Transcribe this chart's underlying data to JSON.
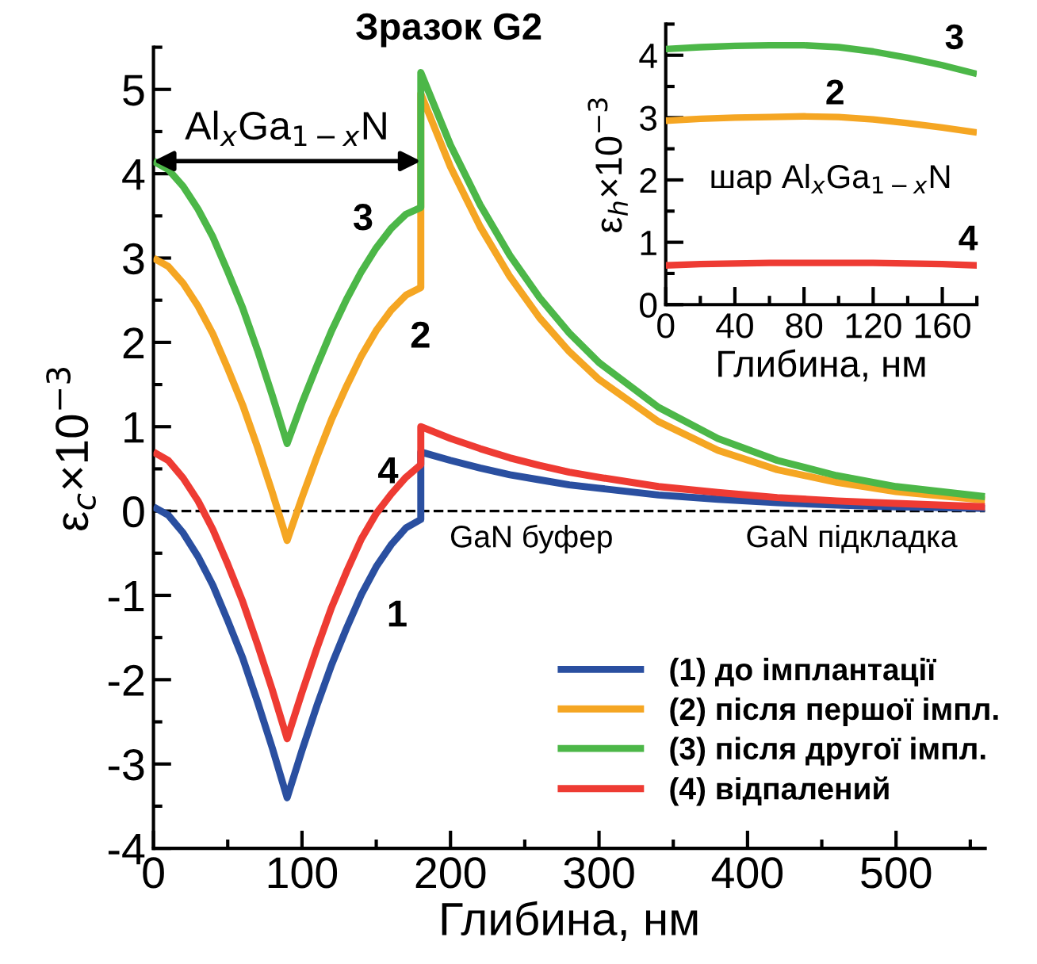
{
  "chart_data": [
    {
      "type": "line",
      "title": "Зразок G2",
      "xlabel": "Глибина, нм",
      "ylabel": "ε$_{c}$×10$^{−3}$",
      "x": [
        0,
        10,
        20,
        30,
        40,
        50,
        60,
        70,
        80,
        90,
        100,
        110,
        120,
        130,
        140,
        150,
        160,
        170,
        180,
        180,
        200,
        220,
        240,
        260,
        280,
        300,
        340,
        380,
        420,
        460,
        500,
        560
      ],
      "series": [
        {
          "name": "(1) до імплантації",
          "color": "#2a4fa0",
          "values": [
            0.05,
            -0.05,
            -0.26,
            -0.54,
            -0.88,
            -1.3,
            -1.74,
            -2.26,
            -2.81,
            -3.4,
            -2.84,
            -2.31,
            -1.82,
            -1.39,
            -0.99,
            -0.66,
            -0.4,
            -0.2,
            -0.1,
            0.7,
            0.6,
            0.51,
            0.43,
            0.37,
            0.31,
            0.27,
            0.19,
            0.14,
            0.1,
            0.07,
            0.05,
            0.03
          ]
        },
        {
          "name": "(2) після першої імпл.",
          "color": "#f5a623",
          "values": [
            3.0,
            2.9,
            2.7,
            2.43,
            2.1,
            1.69,
            1.26,
            0.76,
            0.22,
            -0.35,
            0.16,
            0.64,
            1.09,
            1.48,
            1.84,
            2.14,
            2.38,
            2.56,
            2.65,
            4.95,
            4.08,
            3.37,
            2.78,
            2.29,
            1.89,
            1.56,
            1.06,
            0.72,
            0.49,
            0.34,
            0.23,
            0.13
          ]
        },
        {
          "name": "(3) після другої імпл.",
          "color": "#4cb748",
          "values": [
            4.15,
            4.05,
            3.85,
            3.58,
            3.25,
            2.84,
            2.41,
            1.91,
            1.37,
            0.8,
            1.28,
            1.72,
            2.14,
            2.51,
            2.84,
            3.12,
            3.35,
            3.52,
            3.6,
            5.2,
            4.34,
            3.63,
            3.03,
            2.53,
            2.11,
            1.76,
            1.23,
            0.86,
            0.6,
            0.42,
            0.29,
            0.17
          ]
        },
        {
          "name": "(4) відпалений",
          "color": "#ee3b33",
          "values": [
            0.7,
            0.6,
            0.39,
            0.12,
            -0.22,
            -0.63,
            -1.07,
            -1.58,
            -2.12,
            -2.7,
            -2.15,
            -1.63,
            -1.14,
            -0.72,
            -0.33,
            -0.03,
            0.2,
            0.4,
            0.55,
            1.0,
            0.86,
            0.74,
            0.63,
            0.54,
            0.46,
            0.4,
            0.29,
            0.22,
            0.16,
            0.12,
            0.09,
            0.05
          ]
        }
      ],
      "xlim": [
        0,
        560
      ],
      "xticks": [
        0,
        {
          "value": 50,
          "label": null
        },
        100,
        {
          "value": 150,
          "label": null
        },
        200,
        {
          "value": 250,
          "label": null
        },
        300,
        {
          "value": 350,
          "label": null
        },
        400,
        {
          "value": 450,
          "label": null
        },
        500,
        {
          "value": 550,
          "label": null
        }
      ],
      "ylim": [
        -4,
        5.5
      ],
      "yticks": [
        {
          "value": -4,
          "label": "-4"
        },
        {
          "value": -3.5,
          "label": null
        },
        {
          "value": -3,
          "label": "-3"
        },
        {
          "value": -2.5,
          "label": null
        },
        {
          "value": -2,
          "label": "-2"
        },
        {
          "value": -1.5,
          "label": null
        },
        {
          "value": -1,
          "label": "-1"
        },
        {
          "value": -0.5,
          "label": null
        },
        0,
        {
          "value": 0.5,
          "label": null
        },
        1,
        {
          "value": 1.5,
          "label": null
        },
        2,
        {
          "value": 2.5,
          "label": null
        },
        3,
        {
          "value": 3.5,
          "label": null
        },
        4,
        {
          "value": 4.5,
          "label": null
        },
        5,
        {
          "value": 5.5,
          "label": null
        }
      ],
      "ref_lines": [
        {
          "axis": "y",
          "value": 0,
          "color": "#000000",
          "line_style": "dashed"
        }
      ],
      "annotations": [
        {
          "text": "Al$_{x}$Ga$_{1−x}$N",
          "x": 180,
          "y": 4.15
        },
        "3",
        "2",
        "4",
        "1",
        "GaN буфер",
        "GaN підкладка"
      ],
      "legend": "bottom right",
      "line_style": "solid",
      "grid": false
    },
    {
      "type": "line",
      "xlabel": "Глибина, нм",
      "ylabel": "ε$_{h}$×10$^{−3}$",
      "x": [
        0,
        20,
        40,
        60,
        80,
        100,
        120,
        140,
        160,
        180
      ],
      "series": [
        {
          "color": "#4cb748",
          "values": [
            4.1,
            4.13,
            4.15,
            4.16,
            4.16,
            4.13,
            4.06,
            3.96,
            3.84,
            3.7
          ]
        },
        {
          "color": "#f5a623",
          "values": [
            2.95,
            2.98,
            3.0,
            3.01,
            3.02,
            3.01,
            2.97,
            2.91,
            2.84,
            2.76
          ]
        },
        {
          "color": "#ee3b33",
          "values": [
            0.63,
            0.65,
            0.66,
            0.67,
            0.67,
            0.67,
            0.67,
            0.66,
            0.65,
            0.63
          ]
        }
      ],
      "xlim": [
        0,
        180
      ],
      "xticks": [
        0,
        {
          "value": 20,
          "label": null
        },
        40,
        {
          "value": 60,
          "label": null
        },
        80,
        {
          "value": 100,
          "label": null
        },
        120,
        {
          "value": 140,
          "label": null
        },
        160,
        {
          "value": 180,
          "label": null
        }
      ],
      "ylim": [
        0,
        4.5
      ],
      "yticks": [
        0,
        {
          "value": 0.5,
          "label": null
        },
        1,
        {
          "value": 1.5,
          "label": null
        },
        2,
        {
          "value": 2.5,
          "label": null
        },
        3,
        {
          "value": 3.5,
          "label": null
        },
        4,
        {
          "value": 4.5,
          "label": null
        }
      ],
      "annotations": [
        "3",
        "2",
        "4",
        "шар Al$_{x}$Ga$_{1−x}$N"
      ],
      "line_style": "solid",
      "grid": false
    }
  ]
}
